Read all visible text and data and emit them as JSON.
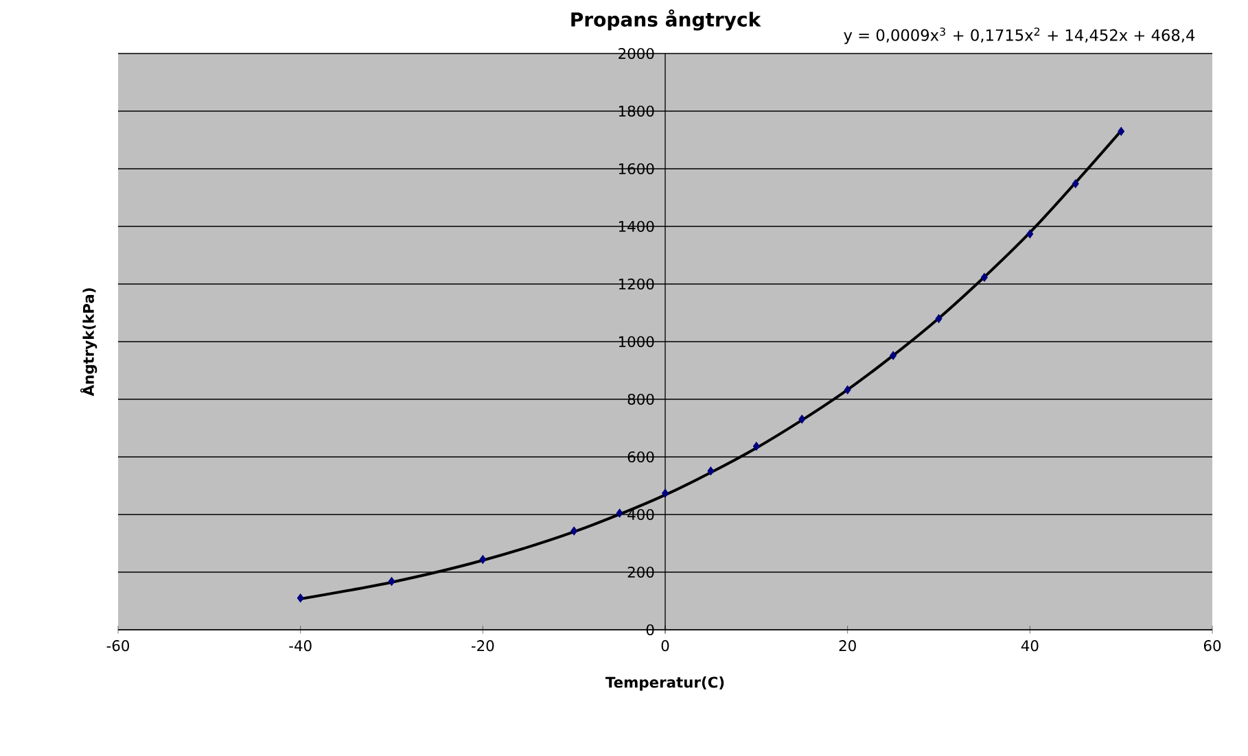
{
  "chart_data": {
    "type": "scatter",
    "title": "Propans ångtryck",
    "xlabel": "Temperatur(C)",
    "ylabel": "Ångtryk(kPa)",
    "annotations": [
      "y = 0,0009x$^{3}$ + 0,1715x$^{2}$ + 14,452x + 468,4"
    ],
    "xlim": [
      -60,
      60
    ],
    "xticks": [
      -60,
      -40,
      -20,
      0,
      20,
      40,
      60
    ],
    "ylim": [
      0,
      2000
    ],
    "yticks": [
      0,
      200,
      400,
      600,
      800,
      1000,
      1200,
      1400,
      1600,
      1800,
      2000
    ],
    "grid": "y",
    "series": [
      {
        "color": "#000080",
        "marker": "diamond",
        "x": [
          -40,
          -30,
          -20,
          -10,
          -5,
          0,
          5,
          10,
          15,
          20,
          25,
          30,
          35,
          40,
          45,
          50
        ],
        "values": [
          110,
          168,
          244,
          343,
          405,
          474,
          551,
          637,
          731,
          833,
          952,
          1080,
          1223,
          1374,
          1548,
          1730
        ]
      },
      {
        "type": "line",
        "color": "#000000",
        "marker": "none",
        "line_style": "solid",
        "x": [
          -40,
          -30,
          -20,
          -10,
          0,
          10,
          20,
          30,
          40,
          50
        ],
        "values": [
          107,
          165,
          241,
          340,
          468,
          631,
          833,
          1081,
          1379,
          1732
        ]
      }
    ]
  }
}
